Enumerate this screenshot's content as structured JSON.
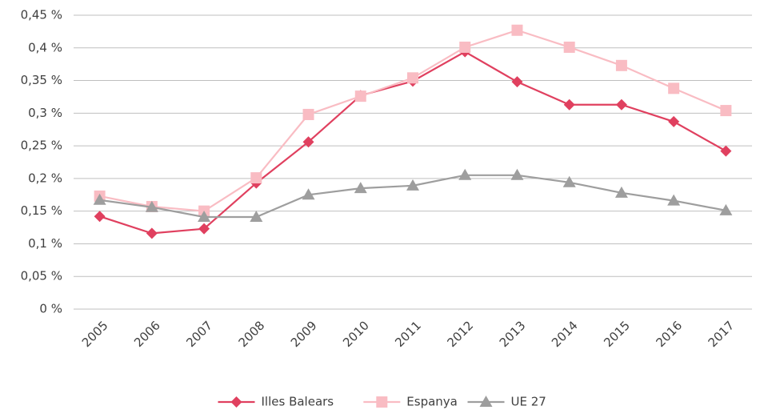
{
  "chart_data": {
    "type": "line",
    "categories": [
      "2005",
      "2006",
      "2007",
      "2008",
      "2009",
      "2010",
      "2011",
      "2012",
      "2013",
      "2014",
      "2015",
      "2016",
      "2017"
    ],
    "series": [
      {
        "name": "Illes Balears",
        "color": "#e0405f",
        "marker": "diamond",
        "values": [
          0.142,
          0.116,
          0.123,
          0.193,
          0.256,
          0.327,
          0.349,
          0.394,
          0.348,
          0.313,
          0.313,
          0.287,
          0.242
        ]
      },
      {
        "name": "Espanya",
        "color": "#f9bcc3",
        "marker": "square",
        "values": [
          0.173,
          0.157,
          0.15,
          0.201,
          0.298,
          0.326,
          0.354,
          0.401,
          0.427,
          0.401,
          0.373,
          0.338,
          0.304
        ]
      },
      {
        "name": "UE 27",
        "color": "#9e9e9e",
        "marker": "triangle",
        "values": [
          0.167,
          0.156,
          0.141,
          0.141,
          0.175,
          0.185,
          0.189,
          0.205,
          0.205,
          0.194,
          0.178,
          0.166,
          0.151
        ]
      }
    ],
    "ylim": [
      0,
      0.45
    ],
    "yticks": [
      {
        "value": 0,
        "label": "0 %"
      },
      {
        "value": 0.05,
        "label": "0,05 %"
      },
      {
        "value": 0.1,
        "label": "0,1 %"
      },
      {
        "value": 0.15,
        "label": "0,15 %"
      },
      {
        "value": 0.2,
        "label": "0,2 %"
      },
      {
        "value": 0.25,
        "label": "0,25 %"
      },
      {
        "value": 0.3,
        "label": "0,3 %"
      },
      {
        "value": 0.35,
        "label": "0,35 %"
      },
      {
        "value": 0.4,
        "label": "0,4 %"
      },
      {
        "value": 0.45,
        "label": "0,45 %"
      }
    ],
    "grid": true,
    "legend": "bottom"
  }
}
